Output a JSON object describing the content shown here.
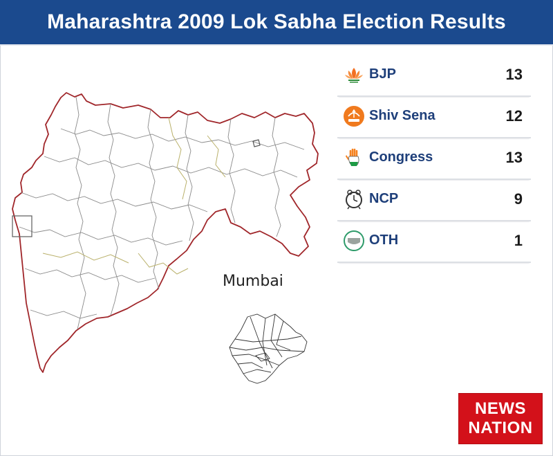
{
  "header": {
    "title": "Maharashtra 2009 Lok Sabha Election Results"
  },
  "map": {
    "inset_label": "Mumbai"
  },
  "results": [
    {
      "party": "BJP",
      "seats": "13",
      "icon": "lotus-icon"
    },
    {
      "party": "Shiv Sena",
      "seats": "12",
      "icon": "bow-arrow-icon"
    },
    {
      "party": "Congress",
      "seats": "13",
      "icon": "hand-icon"
    },
    {
      "party": "NCP",
      "seats": "9",
      "icon": "clock-icon"
    },
    {
      "party": "OTH",
      "seats": "1",
      "icon": "others-icon"
    }
  ],
  "logo": {
    "line1": "NEWS",
    "line2": "NATION"
  },
  "colors": {
    "header_bg": "#1b4a8e",
    "party_text": "#1e3f7a",
    "map_border": "#a0262a",
    "logo_bg": "#d3111a"
  }
}
